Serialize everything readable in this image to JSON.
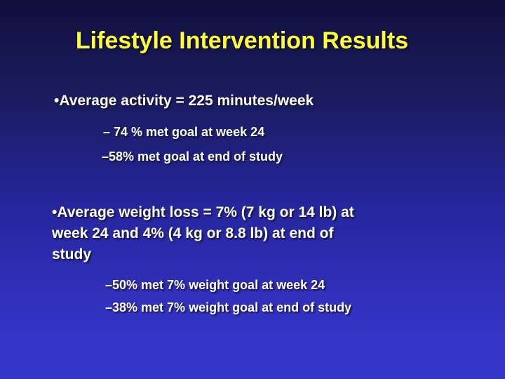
{
  "slide": {
    "title": "Lifestyle Intervention Results",
    "bullets": [
      {
        "marker": "•",
        "text": "Average activity = 225 minutes/week",
        "sub": [
          "– 74 % met goal at week 24",
          "–58% met goal at end of study"
        ]
      },
      {
        "marker": "•",
        "text": "Average weight loss = 7% (7 kg or 14 lb) at\nweek 24 and 4% (4 kg or 8.8 lb) at end of\nstudy",
        "sub": [
          "–50% met 7% weight goal at week 24",
          "–38% met 7% weight goal at end of study"
        ]
      }
    ],
    "colors": {
      "title_text": "#FFFF33",
      "body_text": "#FFFFFF",
      "background_top": "#0F0F3C",
      "background_bottom": "#3535C8"
    }
  }
}
